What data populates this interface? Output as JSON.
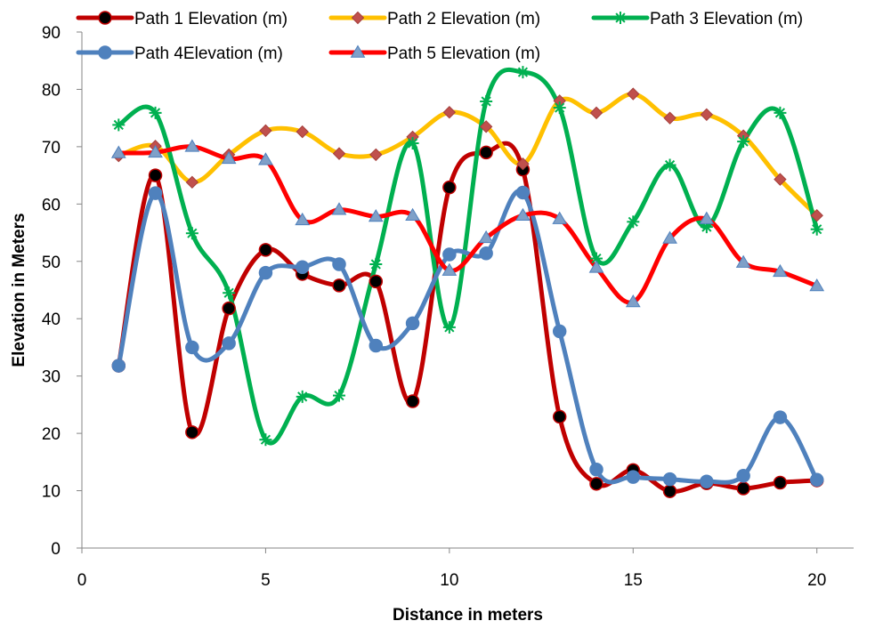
{
  "chart_data": {
    "type": "line",
    "title": "",
    "xlabel": "Distance in meters",
    "ylabel": "Elevation in Meters",
    "xlim": [
      0,
      21
    ],
    "ylim": [
      0,
      90
    ],
    "xticks": [
      0,
      5,
      10,
      15,
      20
    ],
    "yticks": [
      0,
      10,
      20,
      30,
      40,
      50,
      60,
      70,
      80,
      90
    ],
    "grid": false,
    "smooth": true,
    "legend_position": "top",
    "x": [
      1,
      2,
      3,
      4,
      5,
      6,
      7,
      8,
      9,
      10,
      11,
      12,
      13,
      14,
      15,
      16,
      17,
      18,
      19,
      20
    ],
    "series": [
      {
        "name": "Path 1 Elevation (m)",
        "color": "#C00000",
        "marker": "circle",
        "marker_fill": "#000000",
        "values": [
          31.8,
          65.0,
          20.2,
          41.8,
          52.0,
          47.8,
          45.8,
          46.5,
          25.6,
          62.9,
          69.0,
          66.0,
          22.9,
          11.2,
          13.6,
          9.9,
          11.3,
          10.4,
          11.4,
          11.8
        ]
      },
      {
        "name": "Path 2 Elevation (m)",
        "color": "#FFC000",
        "marker": "diamond",
        "marker_fill": "#C0504D",
        "values": [
          68.4,
          70.1,
          63.8,
          68.6,
          72.8,
          72.6,
          68.8,
          68.6,
          71.7,
          76.0,
          73.5,
          67.0,
          78.0,
          75.9,
          79.2,
          75.0,
          75.6,
          71.9,
          64.3,
          58.0
        ]
      },
      {
        "name": "Path 3 Elevation (m)",
        "color": "#00B050",
        "marker": "star",
        "marker_fill": "#00B050",
        "values": [
          73.8,
          75.9,
          54.9,
          44.5,
          18.9,
          26.4,
          26.6,
          49.5,
          70.6,
          38.5,
          77.9,
          83.0,
          76.8,
          50.5,
          56.9,
          66.8,
          56.0,
          70.9,
          75.9,
          55.6
        ]
      },
      {
        "name": "Path  4Elevation (m)",
        "color": "#4F81BD",
        "marker": "circle",
        "marker_fill": "#4F81BD",
        "values": [
          31.8,
          61.9,
          35.0,
          35.7,
          48.0,
          49.0,
          49.5,
          35.3,
          39.2,
          51.2,
          51.4,
          62.0,
          37.8,
          13.7,
          12.4,
          12.0,
          11.6,
          12.6,
          22.8,
          11.9
        ]
      },
      {
        "name": "Path 5 Elevation (m)",
        "color": "#FF0000",
        "marker": "triangle",
        "marker_fill": "#7FA0C8",
        "values": [
          68.9,
          69.0,
          70.0,
          67.9,
          67.7,
          57.2,
          59.0,
          57.8,
          58.0,
          48.4,
          54.1,
          58.0,
          57.4,
          48.9,
          42.9,
          54.0,
          57.4,
          49.8,
          48.2,
          45.7
        ]
      }
    ]
  }
}
